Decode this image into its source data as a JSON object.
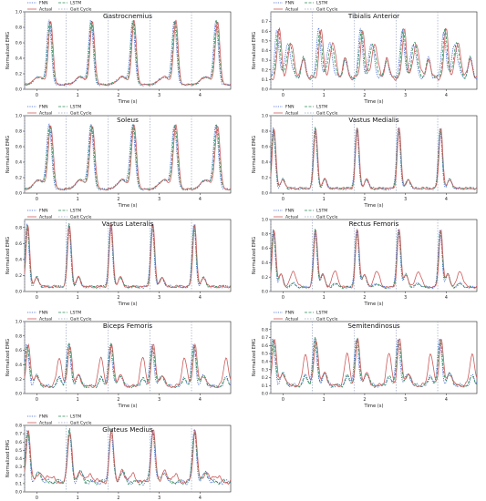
{
  "legend_labels": [
    "FNN",
    "LSTM",
    "Actual",
    "Gait Cycle"
  ],
  "colors": {
    "fnn": "#3a5fcd",
    "lstm": "#2e8b57",
    "actual": "#cd5c5c",
    "gait": "#9aa6c0",
    "axis": "#222222",
    "box": "#444444"
  },
  "chart_data": [
    {
      "type": "line",
      "title": "Gastrocnemius",
      "xlabel": "Time (s)",
      "ylabel": "Normalized EMG",
      "xlim": [
        -0.3,
        4.75
      ],
      "ylim": [
        0,
        1.0
      ],
      "x_ticks": [
        0,
        1,
        2,
        3,
        4
      ],
      "y_ticks": [
        0.0,
        0.2,
        0.4,
        0.6,
        0.8,
        1.0
      ],
      "x_tick_labels": [
        "0",
        "1",
        "2",
        "3",
        "4"
      ],
      "y_tick_labels": [
        "0.0",
        "0.2",
        "0.4",
        "0.6",
        "0.8",
        "1.0"
      ],
      "gait_cycle_x": [
        -0.3,
        0.72,
        1.75,
        2.77,
        3.79
      ],
      "pattern": "gastroc",
      "series": [
        {
          "name": "FNN"
        },
        {
          "name": "LSTM"
        },
        {
          "name": "Actual"
        },
        {
          "name": "Gait Cycle"
        }
      ]
    },
    {
      "type": "line",
      "title": "Tibialis Anterior",
      "xlabel": "Time (s)",
      "ylabel": "Normalized EMG",
      "xlim": [
        -0.3,
        4.75
      ],
      "ylim": [
        0,
        0.8
      ],
      "x_ticks": [
        0,
        1,
        2,
        3,
        4
      ],
      "y_ticks": [
        0.0,
        0.1,
        0.2,
        0.3,
        0.4,
        0.5,
        0.6,
        0.7
      ],
      "x_tick_labels": [
        "0",
        "1",
        "2",
        "3",
        "4"
      ],
      "y_tick_labels": [
        "0.0",
        "0.1",
        "0.2",
        "0.3",
        "0.4",
        "0.5",
        "0.6",
        "0.7"
      ],
      "gait_cycle_x": [
        -0.3,
        0.72,
        1.75,
        2.77,
        3.79
      ],
      "pattern": "tibialis",
      "series": [
        {
          "name": "FNN"
        },
        {
          "name": "LSTM"
        },
        {
          "name": "Actual"
        },
        {
          "name": "Gait Cycle"
        }
      ]
    },
    {
      "type": "line",
      "title": "Soleus",
      "xlabel": "Time (s)",
      "ylabel": "Normalized EMG",
      "xlim": [
        -0.3,
        4.75
      ],
      "ylim": [
        0,
        1.0
      ],
      "x_ticks": [
        0,
        1,
        2,
        3,
        4
      ],
      "y_ticks": [
        0.0,
        0.2,
        0.4,
        0.6,
        0.8,
        1.0
      ],
      "x_tick_labels": [
        "0",
        "1",
        "2",
        "3",
        "4"
      ],
      "y_tick_labels": [
        "0.0",
        "0.2",
        "0.4",
        "0.6",
        "0.8",
        "1.0"
      ],
      "gait_cycle_x": [
        -0.3,
        0.72,
        1.75,
        2.77,
        3.79
      ],
      "pattern": "soleus",
      "series": [
        {
          "name": "FNN"
        },
        {
          "name": "LSTM"
        },
        {
          "name": "Actual"
        },
        {
          "name": "Gait Cycle"
        }
      ]
    },
    {
      "type": "line",
      "title": "Vastus Medialis",
      "xlabel": "Time (s)",
      "ylabel": "Normalized EMG",
      "xlim": [
        -0.3,
        4.75
      ],
      "ylim": [
        0,
        1.0
      ],
      "x_ticks": [
        0,
        1,
        2,
        3,
        4
      ],
      "y_ticks": [
        0.0,
        0.2,
        0.4,
        0.6,
        0.8,
        1.0
      ],
      "x_tick_labels": [
        "0",
        "1",
        "2",
        "3",
        "4"
      ],
      "y_tick_labels": [
        "0.0",
        "0.2",
        "0.4",
        "0.6",
        "0.8",
        "1.0"
      ],
      "gait_cycle_x": [
        -0.3,
        0.72,
        1.75,
        2.77,
        3.79
      ],
      "pattern": "vastus",
      "series": [
        {
          "name": "FNN"
        },
        {
          "name": "LSTM"
        },
        {
          "name": "Actual"
        },
        {
          "name": "Gait Cycle"
        }
      ]
    },
    {
      "type": "line",
      "title": "Vastus Lateralis",
      "xlabel": "Time (s)",
      "ylabel": "Normalized EMG",
      "xlim": [
        -0.3,
        4.75
      ],
      "ylim": [
        0,
        0.9
      ],
      "x_ticks": [
        0,
        1,
        2,
        3,
        4
      ],
      "y_ticks": [
        0.0,
        0.2,
        0.4,
        0.6,
        0.8
      ],
      "x_tick_labels": [
        "0",
        "1",
        "2",
        "3",
        "4"
      ],
      "y_tick_labels": [
        "0.0",
        "0.2",
        "0.4",
        "0.6",
        "0.8"
      ],
      "gait_cycle_x": [
        -0.3,
        0.72,
        1.75,
        2.77,
        3.79
      ],
      "pattern": "vastus",
      "series": [
        {
          "name": "FNN"
        },
        {
          "name": "LSTM"
        },
        {
          "name": "Actual"
        },
        {
          "name": "Gait Cycle"
        }
      ]
    },
    {
      "type": "line",
      "title": "Rectus Femoris",
      "xlabel": "Time (s)",
      "ylabel": "Normalized EMG",
      "xlim": [
        -0.3,
        4.75
      ],
      "ylim": [
        0,
        1.0
      ],
      "x_ticks": [
        0,
        1,
        2,
        3,
        4
      ],
      "y_ticks": [
        0.0,
        0.2,
        0.4,
        0.6,
        0.8,
        1.0
      ],
      "x_tick_labels": [
        "0",
        "1",
        "2",
        "3",
        "4"
      ],
      "y_tick_labels": [
        "0.0",
        "0.2",
        "0.4",
        "0.6",
        "0.8",
        "1.0"
      ],
      "gait_cycle_x": [
        -0.3,
        0.72,
        1.75,
        2.77,
        3.79
      ],
      "pattern": "rectus",
      "series": [
        {
          "name": "FNN"
        },
        {
          "name": "LSTM"
        },
        {
          "name": "Actual"
        },
        {
          "name": "Gait Cycle"
        }
      ]
    },
    {
      "type": "line",
      "title": "Biceps Femoris",
      "xlabel": "Time (s)",
      "ylabel": "Normalized EMG",
      "xlim": [
        -0.3,
        4.75
      ],
      "ylim": [
        0,
        1.0
      ],
      "x_ticks": [
        0,
        1,
        2,
        3,
        4
      ],
      "y_ticks": [
        0.0,
        0.2,
        0.4,
        0.6,
        0.8,
        1.0
      ],
      "x_tick_labels": [
        "0",
        "1",
        "2",
        "3",
        "4"
      ],
      "y_tick_labels": [
        "0.0",
        "0.2",
        "0.4",
        "0.6",
        "0.8",
        "1.0"
      ],
      "gait_cycle_x": [
        -0.3,
        0.72,
        1.75,
        2.77,
        3.79
      ],
      "pattern": "hamstring",
      "series": [
        {
          "name": "FNN"
        },
        {
          "name": "LSTM"
        },
        {
          "name": "Actual"
        },
        {
          "name": "Gait Cycle"
        }
      ]
    },
    {
      "type": "line",
      "title": "Semitendinosus",
      "xlabel": "Time (s)",
      "ylabel": "Normalized EMG",
      "xlim": [
        -0.3,
        4.75
      ],
      "ylim": [
        0,
        0.9
      ],
      "x_ticks": [
        0,
        1,
        2,
        3,
        4
      ],
      "y_ticks": [
        0.0,
        0.1,
        0.2,
        0.3,
        0.4,
        0.5,
        0.6,
        0.7,
        0.8
      ],
      "x_tick_labels": [
        "0",
        "1",
        "2",
        "3",
        "4"
      ],
      "y_tick_labels": [
        "0.0",
        "0.1",
        "0.2",
        "0.3",
        "0.4",
        "0.5",
        "0.6",
        "0.7",
        "0.8"
      ],
      "gait_cycle_x": [
        -0.3,
        0.72,
        1.75,
        2.77,
        3.79
      ],
      "pattern": "hamstring",
      "series": [
        {
          "name": "FNN"
        },
        {
          "name": "LSTM"
        },
        {
          "name": "Actual"
        },
        {
          "name": "Gait Cycle"
        }
      ]
    },
    {
      "type": "line",
      "title": "Gluteus Medius",
      "xlabel": "Time (s)",
      "ylabel": "Normalized EMG",
      "xlim": [
        -0.3,
        4.75
      ],
      "ylim": [
        0,
        0.8
      ],
      "x_ticks": [
        0,
        1,
        2,
        3,
        4
      ],
      "y_ticks": [
        0.0,
        0.1,
        0.2,
        0.3,
        0.4,
        0.5,
        0.6,
        0.7,
        0.8
      ],
      "x_tick_labels": [
        "0",
        "1",
        "2",
        "3",
        "4"
      ],
      "y_tick_labels": [
        "0.0",
        "0.1",
        "0.2",
        "0.3",
        "0.4",
        "0.5",
        "0.6",
        "0.7",
        "0.8"
      ],
      "gait_cycle_x": [
        -0.3,
        0.72,
        1.75,
        2.77,
        3.79
      ],
      "pattern": "gluteus",
      "series": [
        {
          "name": "FNN"
        },
        {
          "name": "LSTM"
        },
        {
          "name": "Actual"
        },
        {
          "name": "Gait Cycle"
        }
      ]
    }
  ]
}
